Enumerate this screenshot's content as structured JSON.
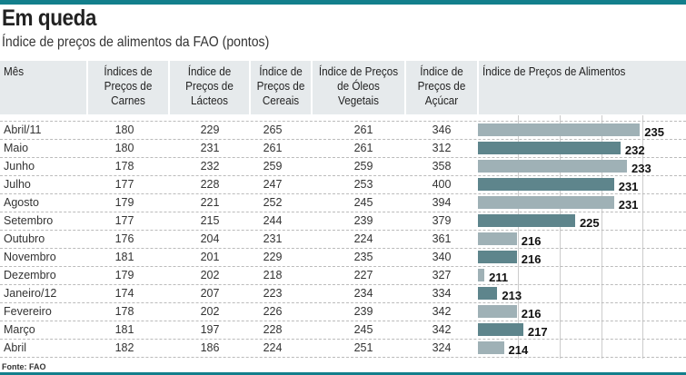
{
  "title": "Em queda",
  "subtitle": "Índice de preços de alimentos da FAO (pontos)",
  "source": "Fonte: FAO",
  "colors": {
    "accent": "#137f8c",
    "bar_light": "#9fb1b6",
    "bar_dark": "#5e858c"
  },
  "headers": [
    "Mês",
    "Índices de Preços de Carnes",
    "Índice de Preços de Lácteos",
    "Índice de Preços de Cereais",
    "Índice de Preços de Óleos Vegetais",
    "Índice de Preços de Açúcar",
    "Índice de Preços de Alimentos"
  ],
  "chart_data": {
    "type": "table",
    "title": "Em queda",
    "subtitle": "Índice de preços de alimentos da FAO (pontos)",
    "columns": [
      "Mês",
      "Carnes",
      "Lácteos",
      "Cereais",
      "Óleos Vegetais",
      "Açúcar",
      "Alimentos"
    ],
    "rows": [
      [
        "Abril/11",
        180,
        229,
        265,
        261,
        346,
        235
      ],
      [
        "Maio",
        180,
        231,
        261,
        261,
        312,
        232
      ],
      [
        "Junho",
        178,
        232,
        259,
        259,
        358,
        233
      ],
      [
        "Julho",
        177,
        228,
        247,
        253,
        400,
        231
      ],
      [
        "Agosto",
        179,
        221,
        252,
        245,
        394,
        231
      ],
      [
        "Setembro",
        177,
        215,
        244,
        239,
        379,
        225
      ],
      [
        "Outubro",
        176,
        204,
        231,
        224,
        361,
        216
      ],
      [
        "Novembro",
        181,
        201,
        229,
        235,
        340,
        216
      ],
      [
        "Dezembro",
        179,
        202,
        218,
        227,
        327,
        211
      ],
      [
        "Janeiro/12",
        174,
        207,
        223,
        234,
        334,
        213
      ],
      [
        "Fevereiro",
        178,
        202,
        226,
        239,
        342,
        216
      ],
      [
        "Março",
        181,
        197,
        228,
        245,
        342,
        217
      ],
      [
        "Abril",
        182,
        186,
        224,
        251,
        324,
        214
      ]
    ],
    "bar_axis_min": 210
  }
}
